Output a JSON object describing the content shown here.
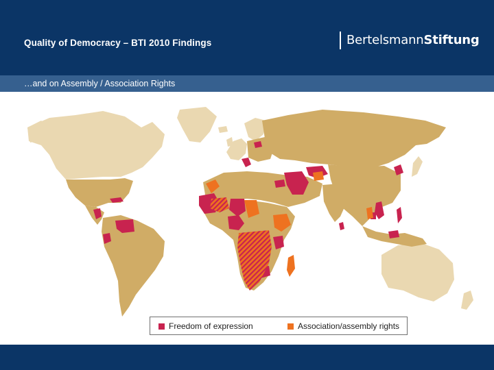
{
  "header": {
    "title": "Quality of Democracy – BTI 2010 Findings",
    "logo_part1": "Bertelsmann",
    "logo_part2": "Stiftung"
  },
  "subheader": {
    "subtitle": "…and on Assembly / Association Rights"
  },
  "legend": {
    "items": [
      {
        "label": "Freedom of expression",
        "color": "#c8234f"
      },
      {
        "label": "Association/assembly rights",
        "color": "#ee7220"
      }
    ]
  },
  "colors": {
    "header_bg": "#0b3566",
    "subheader_bg": "#36608f",
    "land_assessed": "#d0ac66",
    "land_not_assessed": "#ead8b1",
    "freedom_of_expression": "#c8234f",
    "association_assembly": "#ee7220"
  }
}
